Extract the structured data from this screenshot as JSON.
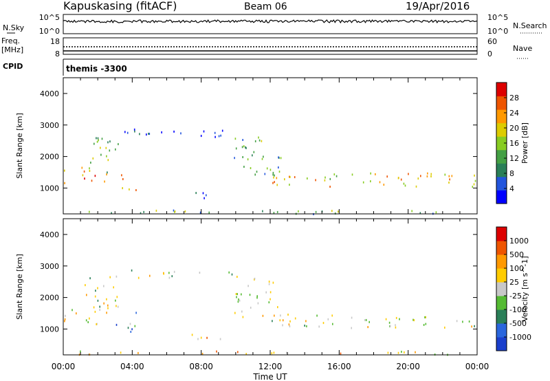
{
  "header": {
    "site": "Kapuskasing (fitACF)",
    "beam": "Beam 06",
    "date": "19/Apr/2016"
  },
  "noise_panel": {
    "left_label": "N.Sky",
    "right_label": "N.Search",
    "left_ticks": [
      "10^5",
      "10^0"
    ],
    "right_ticks": [
      "10^5",
      "10^0"
    ]
  },
  "freq_panel": {
    "left_label_1": "Freq.",
    "left_label_2": "[MHz]",
    "right_label": "Nave",
    "left_ticks": [
      "18",
      "8"
    ],
    "right_ticks": [
      "60",
      "0"
    ]
  },
  "cpid_panel": {
    "label": "CPID",
    "text": "themis -3300"
  },
  "x_axis": {
    "label": "Time UT",
    "ticks": [
      "00:00",
      "04:00",
      "08:00",
      "12:00",
      "16:00",
      "20:00",
      "00:00"
    ]
  },
  "chart_data": [
    {
      "type": "heatmap",
      "name": "power",
      "ylabel": "Slant Range [km]",
      "yticks": [
        1000,
        2000,
        3000,
        4000
      ],
      "ylim": [
        180,
        4500
      ],
      "xlim": [
        0,
        24
      ],
      "colorbar_label": "Power [dB]",
      "colorbar_ticks": [
        4,
        8,
        12,
        16,
        20,
        24,
        28
      ],
      "colorbar_range": [
        0,
        32
      ],
      "colorbar_colors": [
        "#0000ff",
        "#2255dd",
        "#2a7f58",
        "#44a044",
        "#88cc22",
        "#ddcc00",
        "#ff9900",
        "#ee5500",
        "#dd0000"
      ],
      "features": [
        {
          "t0": 0.0,
          "t1": 2.6,
          "r0": 1180,
          "r1": 1700,
          "level": 0.7
        },
        {
          "t0": 1.2,
          "t1": 3.2,
          "r0": 1500,
          "r1": 2700,
          "level": 0.45
        },
        {
          "t0": 3.0,
          "t1": 4.3,
          "r0": 900,
          "r1": 1600,
          "level": 0.8
        },
        {
          "t0": 2.6,
          "t1": 10.0,
          "r0": 2650,
          "r1": 2900,
          "level": 0.1
        },
        {
          "t0": 7.3,
          "t1": 9.6,
          "r0": 700,
          "r1": 900,
          "level": 0.1
        },
        {
          "t0": 9.9,
          "t1": 12.6,
          "r0": 1400,
          "r1": 2700,
          "level": 0.35
        },
        {
          "t0": 12.0,
          "t1": 24.0,
          "r0": 1050,
          "r1": 1500,
          "level": 0.65
        },
        {
          "t0": 0.0,
          "t1": 24.0,
          "r0": 200,
          "r1": 320,
          "level": 0.4
        }
      ]
    },
    {
      "type": "heatmap",
      "name": "velocity",
      "ylabel": "Slant Range [km]",
      "yticks": [
        1000,
        2000,
        3000,
        4000
      ],
      "ylim": [
        180,
        4500
      ],
      "xlim": [
        0,
        24
      ],
      "colorbar_label": "Velocity [m s^-1]",
      "colorbar_ticks": [
        "1000",
        "500",
        "100",
        "25",
        "-25",
        "-100",
        "-500",
        "-1000"
      ],
      "colorbar_colors": [
        "#1a3fcc",
        "#2a66dd",
        "#2a7f58",
        "#55bb33",
        "#c8c8c8",
        "#ffcc00",
        "#ff9900",
        "#ee5500",
        "#dd0000"
      ],
      "features": [
        {
          "t0": 0.0,
          "t1": 2.6,
          "r0": 1180,
          "r1": 1700,
          "level": 0.5
        },
        {
          "t0": 1.2,
          "t1": 3.2,
          "r0": 1500,
          "r1": 2700,
          "level": 0.5
        },
        {
          "t0": 3.0,
          "t1": 4.3,
          "r0": 900,
          "r1": 1600,
          "level": 0.3
        },
        {
          "t0": 2.6,
          "t1": 10.0,
          "r0": 2650,
          "r1": 2900,
          "level": 0.5
        },
        {
          "t0": 7.3,
          "t1": 9.6,
          "r0": 700,
          "r1": 900,
          "level": 0.7
        },
        {
          "t0": 9.9,
          "t1": 12.6,
          "r0": 1400,
          "r1": 2700,
          "level": 0.5
        },
        {
          "t0": 12.0,
          "t1": 24.0,
          "r0": 1050,
          "r1": 1500,
          "level": 0.5
        },
        {
          "t0": 0.0,
          "t1": 24.0,
          "r0": 200,
          "r1": 320,
          "level": 0.6
        }
      ]
    }
  ]
}
